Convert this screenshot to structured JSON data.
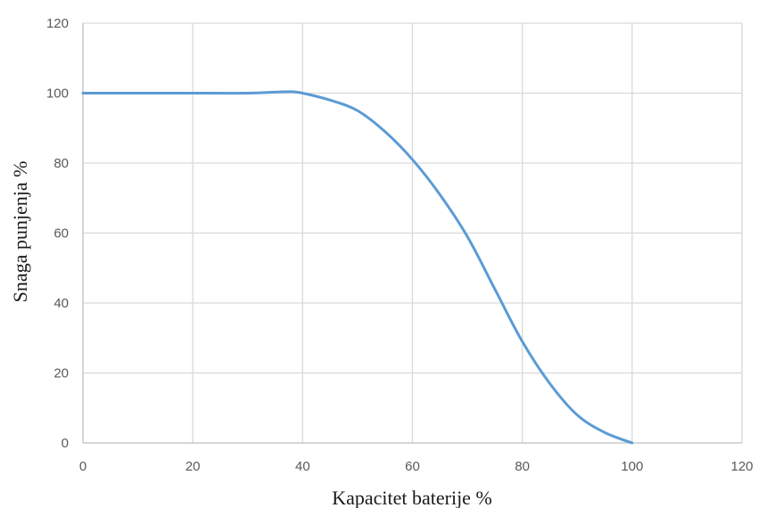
{
  "chart_data": {
    "type": "line",
    "title": "",
    "xlabel": "Kapacitet baterije %",
    "ylabel": "Snaga punjenja %",
    "xlim": [
      0,
      120
    ],
    "ylim": [
      0,
      120
    ],
    "xticks": [
      0,
      20,
      40,
      60,
      80,
      100,
      120
    ],
    "yticks": [
      0,
      20,
      40,
      60,
      80,
      100,
      120
    ],
    "grid": true,
    "legend": "none",
    "colors": {
      "line": "#5b9bd5",
      "grid": "#d9d9d9",
      "axis": "#bfbfbf"
    },
    "series": [
      {
        "x": [
          0,
          10,
          20,
          30,
          35,
          38,
          40,
          45,
          50,
          55,
          60,
          65,
          70,
          75,
          80,
          85,
          90,
          95,
          100
        ],
        "y": [
          100,
          100,
          100,
          100,
          100.3,
          100.4,
          100,
          98,
          95,
          89,
          81,
          71,
          59,
          44,
          29,
          17,
          8,
          3,
          0
        ]
      }
    ]
  }
}
